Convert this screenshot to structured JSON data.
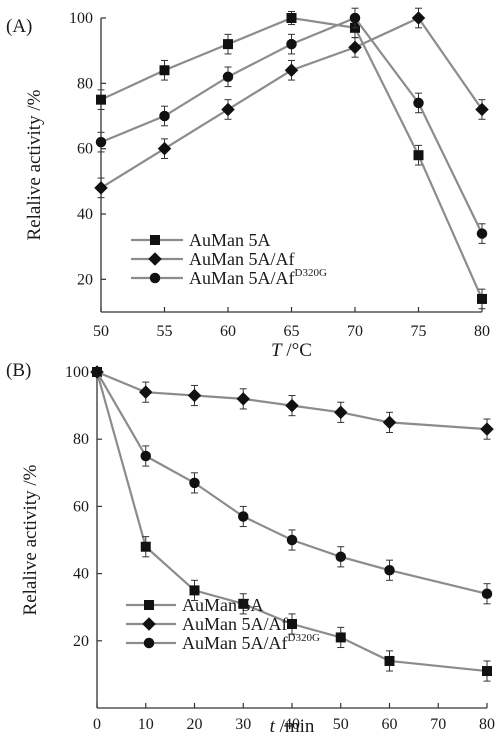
{
  "colors": {
    "series": "#8c8c8c",
    "marker": "#111111",
    "axis": "#333333"
  },
  "chart_data": [
    {
      "type": "line",
      "panel_label": "(A)",
      "xlabel_var": "T",
      "xlabel_unit": " /°C",
      "ylabel": "Relalive activity /%",
      "x": [
        50,
        55,
        60,
        65,
        70,
        75,
        80
      ],
      "xlim": [
        50,
        80
      ],
      "ylim": [
        10,
        100
      ],
      "xticks": [
        "50",
        "55",
        "60",
        "65",
        "70",
        "75",
        "80"
      ],
      "yticks": [
        "20",
        "40",
        "60",
        "80",
        "100"
      ],
      "legend_position": "lower-left",
      "series": [
        {
          "name": "AuMan 5A",
          "name_sup": "",
          "marker": "square",
          "values": [
            75,
            84,
            92,
            100,
            97,
            58,
            14
          ],
          "errors": [
            3,
            3,
            3,
            2,
            3,
            3,
            3
          ]
        },
        {
          "name": "AuMan 5A/Af",
          "name_sup": "",
          "marker": "diamond",
          "values": [
            48,
            60,
            72,
            84,
            91,
            100,
            72
          ],
          "errors": [
            3,
            3,
            3,
            3,
            3,
            3,
            3
          ]
        },
        {
          "name": "AuMan 5A/Af",
          "name_sup": "D320G",
          "marker": "circle",
          "values": [
            62,
            70,
            82,
            92,
            100,
            74,
            34
          ],
          "errors": [
            3,
            3,
            3,
            3,
            3,
            3,
            3
          ]
        }
      ]
    },
    {
      "type": "line",
      "panel_label": "(B)",
      "xlabel_var": "t",
      "xlabel_unit": " /min",
      "ylabel": "Relalive activity /%",
      "x": [
        0,
        10,
        20,
        30,
        40,
        50,
        60,
        80
      ],
      "xlim": [
        0,
        80
      ],
      "ylim": [
        0,
        100
      ],
      "xticks": [
        "0",
        "10",
        "20",
        "30",
        "40",
        "50",
        "60",
        "70",
        "80"
      ],
      "yticks": [
        "20",
        "40",
        "60",
        "80",
        "100"
      ],
      "legend_position": "lower-left",
      "series": [
        {
          "name": "AuMan 5A",
          "name_sup": "",
          "marker": "square",
          "values": [
            100,
            48,
            35,
            31,
            25,
            21,
            14,
            11
          ],
          "errors": [
            0,
            3,
            3,
            3,
            3,
            3,
            3,
            3
          ]
        },
        {
          "name": "AuMan 5A/Af",
          "name_sup": "",
          "marker": "diamond",
          "values": [
            100,
            94,
            93,
            92,
            90,
            88,
            85,
            83
          ],
          "errors": [
            0,
            3,
            3,
            3,
            3,
            3,
            3,
            3
          ]
        },
        {
          "name": "AuMan 5A/Af",
          "name_sup": "D320G",
          "marker": "circle",
          "values": [
            100,
            75,
            67,
            57,
            50,
            45,
            41,
            34
          ],
          "errors": [
            0,
            3,
            3,
            3,
            3,
            3,
            3,
            3
          ]
        }
      ]
    }
  ]
}
